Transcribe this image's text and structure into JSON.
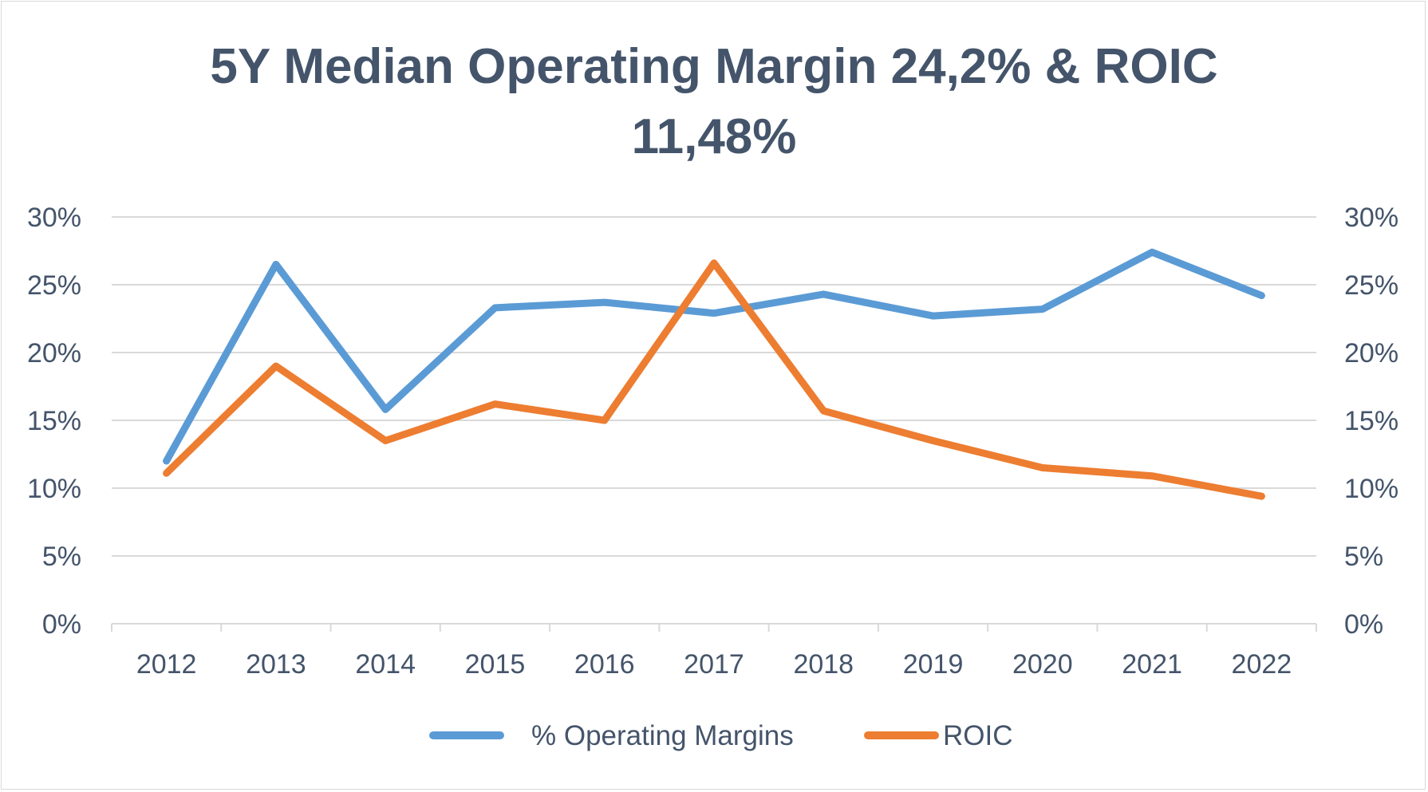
{
  "chart_data": {
    "type": "line",
    "title_line1": "5Y Median Operating Margin 24,2% & ROIC",
    "title_line2": "11,48%",
    "categories": [
      "2012",
      "2013",
      "2014",
      "2015",
      "2016",
      "2017",
      "2018",
      "2019",
      "2020",
      "2021",
      "2022"
    ],
    "series": [
      {
        "name": "% Operating Margins",
        "color": "#5b9bd5",
        "values": [
          12.0,
          26.5,
          15.8,
          23.3,
          23.7,
          22.9,
          24.3,
          22.7,
          23.2,
          27.4,
          24.2
        ]
      },
      {
        "name": "ROIC",
        "color": "#ed7d31",
        "values": [
          11.1,
          19.0,
          13.5,
          16.2,
          15.0,
          26.6,
          15.7,
          13.5,
          11.5,
          10.9,
          9.4
        ]
      }
    ],
    "y_ticks": [
      "0%",
      "5%",
      "10%",
      "15%",
      "20%",
      "25%",
      "30%"
    ],
    "ylim": [
      0,
      30
    ],
    "y2_ticks": [
      "0%",
      "5%",
      "10%",
      "15%",
      "20%",
      "25%",
      "30%"
    ],
    "y2lim": [
      0,
      30
    ],
    "grid": true,
    "legend_position": "bottom"
  }
}
